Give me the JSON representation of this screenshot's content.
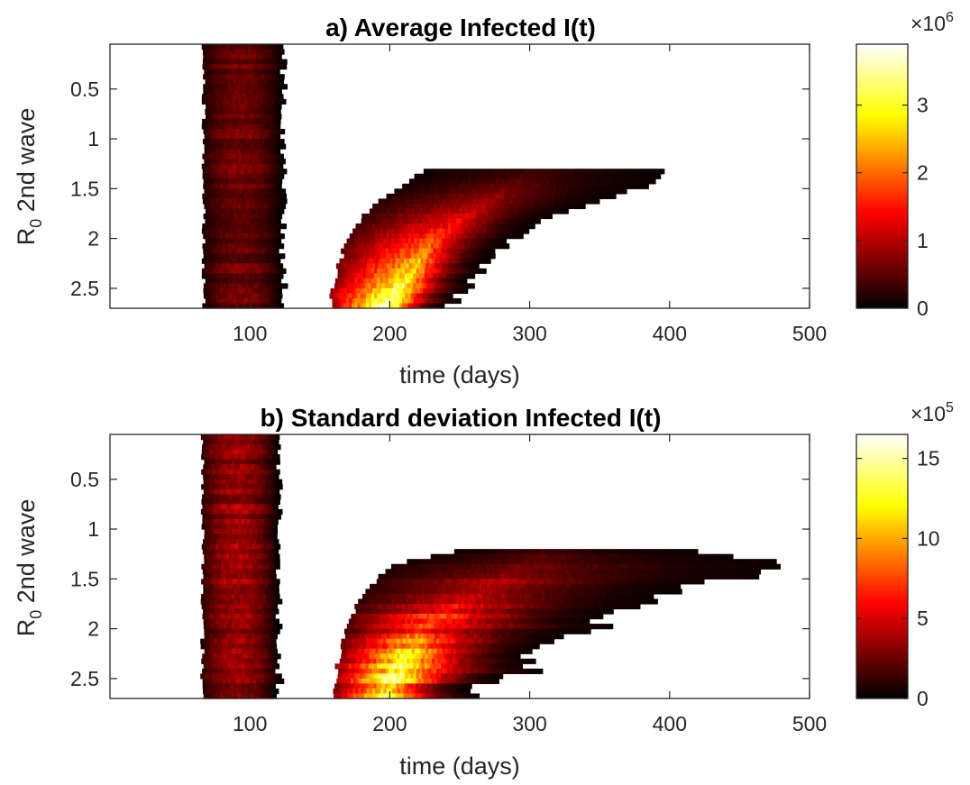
{
  "chart_data": [
    {
      "type": "heatmap",
      "title": "a) Average Infected I(t)",
      "xlabel": "time (days)",
      "ylabel": "R",
      "ylabel_sub": "0",
      "ylabel_rest": " 2nd wave",
      "xlim": [
        0,
        500
      ],
      "ylim": [
        0.05,
        2.7
      ],
      "y_reversed": true,
      "xticks": [
        "100",
        "200",
        "300",
        "400",
        "500"
      ],
      "yticks": [
        "0.5",
        "1",
        "1.5",
        "2",
        "2.5"
      ],
      "xtick_values": [
        100,
        200,
        300,
        400,
        500
      ],
      "ytick_values": [
        0.5,
        1,
        1.5,
        2,
        2.5
      ],
      "colormap": "hot",
      "colorbar": {
        "multiplier_base": "×10",
        "multiplier_exp": "6",
        "cmax": 3.9,
        "ticks": [
          "0",
          "1",
          "2",
          "3"
        ],
        "tick_values": [
          0,
          1,
          2,
          3
        ]
      },
      "waves": {
        "first": {
          "start": 67,
          "end": 123,
          "peak_time": 92,
          "peak_value": 0.6
        },
        "second": {
          "r0_min": 1.3,
          "peak_value_max": 3.9,
          "points": [
            {
              "r0": 1.3,
              "start": 228,
              "end": 398
            },
            {
              "r0": 1.5,
              "start": 205,
              "end": 375
            },
            {
              "r0": 1.7,
              "start": 185,
              "end": 330
            },
            {
              "r0": 2.0,
              "start": 170,
              "end": 288
            },
            {
              "r0": 2.3,
              "start": 162,
              "end": 265
            },
            {
              "r0": 2.7,
              "start": 157,
              "end": 243
            }
          ],
          "peak_times": [
            {
              "r0": 1.3,
              "t": 300
            },
            {
              "r0": 2.0,
              "t": 230
            },
            {
              "r0": 2.7,
              "t": 197
            }
          ]
        }
      }
    },
    {
      "type": "heatmap",
      "title": "b) Standard deviation Infected I(t)",
      "xlabel": "time (days)",
      "ylabel": "R",
      "ylabel_sub": "0",
      "ylabel_rest": " 2nd wave",
      "xlim": [
        0,
        500
      ],
      "ylim": [
        0.05,
        2.7
      ],
      "y_reversed": true,
      "xticks": [
        "100",
        "200",
        "300",
        "400",
        "500"
      ],
      "yticks": [
        "0.5",
        "1",
        "1.5",
        "2",
        "2.5"
      ],
      "xtick_values": [
        100,
        200,
        300,
        400,
        500
      ],
      "ytick_values": [
        0.5,
        1,
        1.5,
        2,
        2.5
      ],
      "colormap": "hot",
      "colorbar": {
        "multiplier_base": "×10",
        "multiplier_exp": "5",
        "cmax": 16.5,
        "ticks": [
          "0",
          "5",
          "10",
          "15"
        ],
        "tick_values": [
          0,
          5,
          10,
          15
        ]
      },
      "waves": {
        "first": {
          "start": 66,
          "end": 120,
          "peak_time": 90,
          "peak_value": 3.5
        },
        "second": {
          "r0_min": 1.2,
          "peak_value_max": 16.5,
          "points": [
            {
              "r0": 1.2,
              "start": 255,
              "end": 430
            },
            {
              "r0": 1.35,
              "start": 205,
              "end": 480
            },
            {
              "r0": 1.5,
              "start": 190,
              "end": 440
            },
            {
              "r0": 1.8,
              "start": 175,
              "end": 380
            },
            {
              "r0": 2.2,
              "start": 165,
              "end": 320
            },
            {
              "r0": 2.7,
              "start": 158,
              "end": 255
            }
          ],
          "peak_times": [
            {
              "r0": 1.2,
              "t": 310
            },
            {
              "r0": 2.0,
              "t": 220
            },
            {
              "r0": 2.7,
              "t": 195
            }
          ]
        }
      }
    }
  ]
}
